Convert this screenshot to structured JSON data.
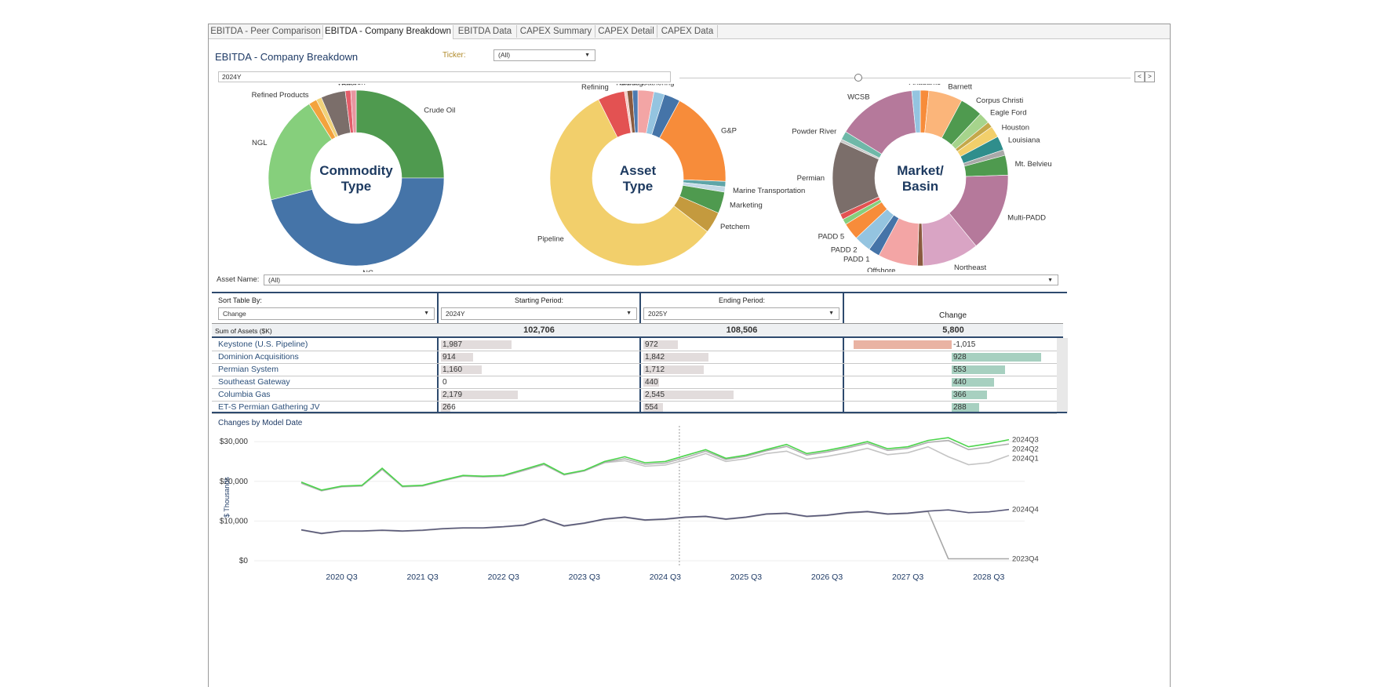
{
  "tabs": [
    {
      "label": "EBITDA - Peer Comparison",
      "active": false
    },
    {
      "label": "EBITDA - Company Breakdown",
      "active": true
    },
    {
      "label": "EBITDA Data",
      "active": false
    },
    {
      "label": "CAPEX Summary",
      "active": false
    },
    {
      "label": "CAPEX Detail",
      "active": false
    },
    {
      "label": "CAPEX Data",
      "active": false
    }
  ],
  "header": {
    "title": "EBITDA - Company Breakdown",
    "ticker_label": "Ticker:",
    "ticker_value": "(All)",
    "period_value": "2024Y",
    "prev_label": "<",
    "next_label": ">"
  },
  "donuts": [
    {
      "center_line1": "Commodity",
      "center_line2": "Type",
      "slices": [
        {
          "label": "Crude Oil",
          "value": 25,
          "color": "#4f9a4f"
        },
        {
          "label": "NG",
          "value": 46,
          "color": "#4574a8"
        },
        {
          "label": "NGL",
          "value": 20,
          "color": "#86cf7c"
        },
        {
          "label": "Refined Products",
          "value": 1.5,
          "color": "#f3a33d"
        },
        {
          "label": "",
          "value": 1,
          "color": "#f0d27a"
        },
        {
          "label": "",
          "value": 4.5,
          "color": "#7b6e6a"
        },
        {
          "label": "Water",
          "value": 1,
          "color": "#e35e6a"
        },
        {
          "label": "Carbon",
          "value": 1,
          "color": "#e896a0"
        }
      ]
    },
    {
      "center_line1": "Asset",
      "center_line2": "Type",
      "slices": [
        {
          "label": "Crude Gathering",
          "value": 3,
          "color": "#f3a5a5"
        },
        {
          "label": "",
          "value": 2,
          "color": "#94c4e0"
        },
        {
          "label": "",
          "value": 3,
          "color": "#4574a8"
        },
        {
          "label": "G&P",
          "value": 18,
          "color": "#f78c3a"
        },
        {
          "label": "",
          "value": 1,
          "color": "#5fa5a8"
        },
        {
          "label": "Marine Transportation",
          "value": 1,
          "color": "#c4d9e6"
        },
        {
          "label": "Marketing",
          "value": 4,
          "color": "#4f9a4f"
        },
        {
          "label": "Petchem",
          "value": 4,
          "color": "#c49a3e"
        },
        {
          "label": "Pipeline",
          "value": 58,
          "color": "#f2cf6b"
        },
        {
          "label": "Refining",
          "value": 5,
          "color": "#e35252"
        },
        {
          "label": "",
          "value": 0.5,
          "color": "#f5cac4"
        },
        {
          "label": "Trucking",
          "value": 1,
          "color": "#8a5a3e"
        },
        {
          "label": "",
          "value": 1,
          "color": "#4d7ab0"
        }
      ]
    },
    {
      "center_line1": "Market/",
      "center_line2": "Basin",
      "slices": [
        {
          "label": "Anadarko",
          "value": 1.5,
          "color": "#f78c3a"
        },
        {
          "label": "Barnett",
          "value": 6,
          "color": "#fbb57a"
        },
        {
          "label": "Corpus Christi",
          "value": 4,
          "color": "#4f9a4f"
        },
        {
          "label": "Eagle Ford",
          "value": 2,
          "color": "#a6d48c"
        },
        {
          "label": "",
          "value": 1,
          "color": "#c4a84a"
        },
        {
          "label": "Houston",
          "value": 2,
          "color": "#f2cf6b"
        },
        {
          "label": "Louisiana",
          "value": 2.5,
          "color": "#2f8e8c"
        },
        {
          "label": "",
          "value": 1,
          "color": "#a9a9a9"
        },
        {
          "label": "Mt. Belvieu",
          "value": 3.5,
          "color": "#4f9a4f"
        },
        {
          "label": "Multi-PADD",
          "value": 14,
          "color": "#b5799b"
        },
        {
          "label": "Northeast",
          "value": 10,
          "color": "#d9a4c4"
        },
        {
          "label": "",
          "value": 1,
          "color": "#8a5a3e"
        },
        {
          "label": "Offshore",
          "value": 7,
          "color": "#f3a5a5"
        },
        {
          "label": "PADD 1",
          "value": 2,
          "color": "#4574a8"
        },
        {
          "label": "PADD 2",
          "value": 3,
          "color": "#94c4e0"
        },
        {
          "label": "PADD 5",
          "value": 3,
          "color": "#f78c3a"
        },
        {
          "label": "",
          "value": 1,
          "color": "#86cf7c"
        },
        {
          "label": "",
          "value": 1,
          "color": "#e35252"
        },
        {
          "label": "Permian",
          "value": 13,
          "color": "#7b6e6a"
        },
        {
          "label": "",
          "value": 0.5,
          "color": "#c8c8c8"
        },
        {
          "label": "Powder River",
          "value": 1.5,
          "color": "#6fb8a8"
        },
        {
          "label": "WCSB",
          "value": 14,
          "color": "#b5799b"
        },
        {
          "label": "",
          "value": 1.5,
          "color": "#94c4e0"
        }
      ]
    }
  ],
  "asset_filter": {
    "label": "Asset Name:",
    "value": "(All)"
  },
  "table": {
    "sort_label": "Sort Table By:",
    "sort_value": "Change",
    "start_label": "Starting Period:",
    "start_value": "2024Y",
    "end_label": "Ending Period:",
    "end_value": "2025Y",
    "change_label": "Change",
    "sum_label": "Sum of Assets ($K)",
    "sum_start": "102,706",
    "sum_end": "108,506",
    "sum_change": "5,800",
    "rows": [
      {
        "name": "Keystone (U.S. Pipeline)",
        "start": 1987,
        "start_text": "1,987",
        "end": 972,
        "end_text": "972",
        "change": -1015,
        "change_text": "-1,015"
      },
      {
        "name": "Dominion Acquisitions",
        "start": 914,
        "start_text": "914",
        "end": 1842,
        "end_text": "1,842",
        "change": 928,
        "change_text": "928"
      },
      {
        "name": "Permian System",
        "start": 1160,
        "start_text": "1,160",
        "end": 1712,
        "end_text": "1,712",
        "change": 553,
        "change_text": "553"
      },
      {
        "name": "Southeast Gateway",
        "start": 0,
        "start_text": "0",
        "end": 440,
        "end_text": "440",
        "change": 440,
        "change_text": "440"
      },
      {
        "name": "Columbia Gas",
        "start": 2179,
        "start_text": "2,179",
        "end": 2545,
        "end_text": "2,545",
        "change": 366,
        "change_text": "366"
      },
      {
        "name": "ET-S Permian Gathering JV",
        "start": 266,
        "start_text": "266",
        "end": 554,
        "end_text": "554",
        "change": 288,
        "change_text": "288"
      }
    ]
  },
  "chart_data": {
    "type": "line",
    "title": "Changes by Model Date",
    "ylabel": "$ Thousands",
    "ylim": [
      0,
      32000
    ],
    "yticks": [
      0,
      10000,
      20000,
      30000
    ],
    "ytick_labels": [
      "$0",
      "$10,000",
      "$20,000",
      "$30,000"
    ],
    "x": [
      "2020 Q1",
      "2020 Q2",
      "2020 Q3",
      "2020 Q4",
      "2021 Q1",
      "2021 Q2",
      "2021 Q3",
      "2021 Q4",
      "2022 Q1",
      "2022 Q2",
      "2022 Q3",
      "2022 Q4",
      "2023 Q1",
      "2023 Q2",
      "2023 Q3",
      "2023 Q4",
      "2024 Q1",
      "2024 Q2",
      "2024 Q3",
      "2024 Q4",
      "2025 Q1",
      "2025 Q2",
      "2025 Q3",
      "2025 Q4",
      "2026 Q1",
      "2026 Q2",
      "2026 Q3",
      "2026 Q4",
      "2027 Q1",
      "2027 Q2",
      "2027 Q3",
      "2027 Q4",
      "2028 Q1",
      "2028 Q2",
      "2028 Q3",
      "2028 Q4"
    ],
    "xtick_labels": [
      "2020 Q3",
      "2021 Q3",
      "2022 Q3",
      "2023 Q3",
      "2024 Q3",
      "2025 Q3",
      "2026 Q3",
      "2027 Q3",
      "2028 Q3"
    ],
    "series": [
      {
        "name": "2024Q3",
        "color": "#4cd44c",
        "values": [
          19800,
          17800,
          18800,
          19000,
          23300,
          18800,
          19000,
          20300,
          21500,
          21300,
          21500,
          23000,
          24500,
          21800,
          22800,
          25000,
          26200,
          24700,
          25000,
          26500,
          28000,
          25800,
          26600,
          28000,
          29300,
          27000,
          27800,
          28800,
          30000,
          28200,
          28700,
          30300,
          31000,
          28700,
          29500,
          30500
        ]
      },
      {
        "name": "2024Q2",
        "color": "#b0b0b0",
        "values": [
          19600,
          17700,
          18700,
          18900,
          23100,
          18700,
          18900,
          20200,
          21400,
          21200,
          21400,
          22800,
          24300,
          21700,
          22700,
          24800,
          25700,
          24300,
          24600,
          26000,
          27600,
          25500,
          26300,
          27700,
          28800,
          26600,
          27400,
          28400,
          29600,
          27800,
          28300,
          29800,
          30300,
          28000,
          28700,
          29400
        ]
      },
      {
        "name": "2024Q1",
        "color": "#c4c4c4",
        "values": [
          19500,
          17600,
          18600,
          18800,
          23000,
          18600,
          18800,
          20100,
          21300,
          21100,
          21300,
          22700,
          24200,
          21600,
          22600,
          24700,
          25200,
          23800,
          24100,
          25400,
          27000,
          25000,
          25700,
          27000,
          27600,
          25600,
          26300,
          27200,
          28300,
          26700,
          27200,
          28700,
          26200,
          24200,
          24700,
          26500
        ]
      },
      {
        "name": "2024Q4",
        "color": "#5a5a7a",
        "values": [
          7800,
          6900,
          7500,
          7500,
          7700,
          7500,
          7700,
          8100,
          8300,
          8300,
          8600,
          9000,
          10500,
          8800,
          9500,
          10500,
          11000,
          10300,
          10500,
          11000,
          11200,
          10500,
          11000,
          11800,
          12000,
          11200,
          11500,
          12100,
          12400,
          11800,
          12000,
          12500,
          12800,
          12100,
          12300,
          12900
        ]
      },
      {
        "name": "2023Q4",
        "color": "#a8a8a8",
        "values": [
          7700,
          6800,
          7400,
          7400,
          7600,
          7400,
          7600,
          8000,
          8200,
          8200,
          8500,
          8900,
          10400,
          8700,
          9400,
          10400,
          10900,
          10200,
          10400,
          10900,
          11100,
          10400,
          10900,
          11700,
          11900,
          11100,
          11400,
          12000,
          12300,
          11700,
          11900,
          12400,
          500,
          500,
          500,
          500
        ]
      }
    ]
  }
}
